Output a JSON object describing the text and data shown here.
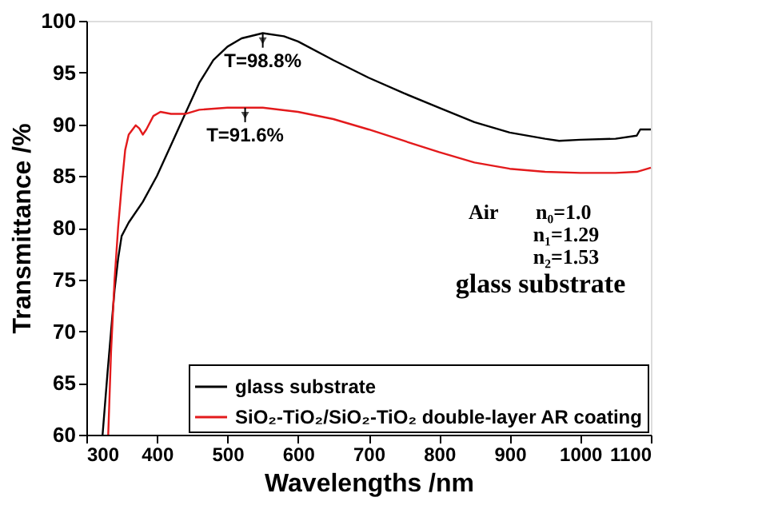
{
  "chart_data": {
    "type": "line",
    "xlabel": "Wavelengths /nm",
    "ylabel": "Transmittance /%",
    "xlim": [
      300,
      1100
    ],
    "xticks": [
      300,
      400,
      500,
      600,
      700,
      800,
      900,
      1000,
      1100
    ],
    "ylim": [
      60,
      100
    ],
    "yticks": [
      60,
      65,
      70,
      75,
      80,
      85,
      90,
      95,
      100
    ],
    "grid": false,
    "legend": "bottom right",
    "line_style": "solid",
    "marker": "none",
    "series": [
      {
        "name": "glass substrate",
        "color": "#000000",
        "x": [
          323,
          330,
          335,
          340,
          345,
          350,
          360,
          380,
          400,
          420,
          440,
          460,
          480,
          500,
          520,
          550,
          580,
          600,
          650,
          700,
          750,
          800,
          850,
          900,
          950,
          970,
          1000,
          1050,
          1080,
          1085,
          1100
        ],
        "values": [
          60,
          66,
          70,
          74,
          77,
          79.2,
          80.5,
          82.5,
          85,
          88,
          91,
          94,
          96.2,
          97.5,
          98.3,
          98.8,
          98.5,
          98,
          96.2,
          94.5,
          93,
          91.6,
          90.2,
          89.2,
          88.6,
          88.4,
          88.5,
          88.6,
          88.9,
          89.5,
          89.5
        ]
      },
      {
        "name": "SiO₂-TiO₂/SiO₂-TiO₂ double-layer AR coating",
        "color": "#e31a1c",
        "x": [
          331,
          335,
          340,
          345,
          350,
          355,
          360,
          370,
          375,
          380,
          385,
          395,
          405,
          420,
          440,
          460,
          500,
          550,
          600,
          650,
          700,
          750,
          800,
          850,
          900,
          950,
          1000,
          1050,
          1080,
          1100
        ],
        "values": [
          60,
          68,
          75,
          80,
          84,
          87.5,
          89,
          89.9,
          89.6,
          89,
          89.5,
          90.8,
          91.2,
          91,
          91,
          91.4,
          91.6,
          91.6,
          91.2,
          90.5,
          89.5,
          88.4,
          87.3,
          86.3,
          85.7,
          85.4,
          85.3,
          85.3,
          85.4,
          85.8
        ]
      }
    ],
    "annotations": [
      {
        "text": "T=98.8%",
        "x": 550,
        "y": 98.8
      },
      {
        "text": "T=91.6%",
        "x": 525,
        "y": 91.6
      },
      "Air",
      "n₀=1.0",
      "n₁=1.29",
      "n₂=1.53",
      "glass substrate"
    ]
  }
}
